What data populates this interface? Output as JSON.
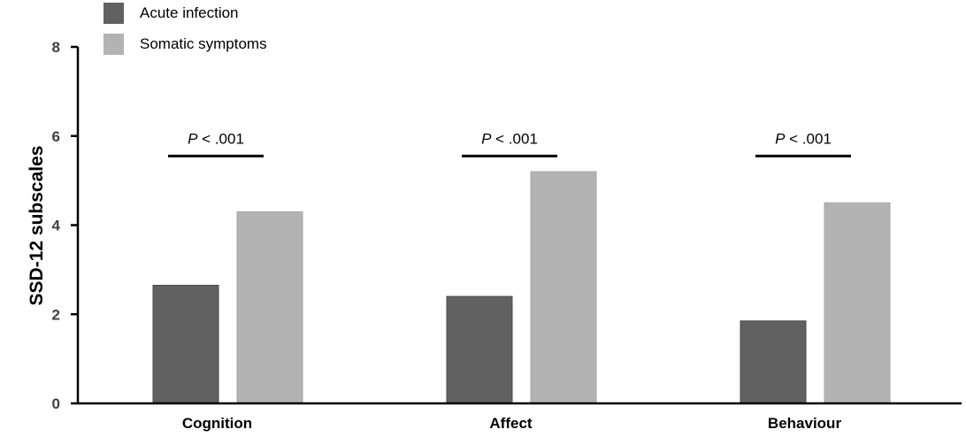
{
  "chart_data": {
    "type": "bar",
    "title": "",
    "xlabel": "",
    "ylabel": "SSD-12 subscales",
    "ylim": [
      0,
      8
    ],
    "yticks": [
      "0",
      "2",
      "4",
      "6",
      "8"
    ],
    "grid": false,
    "legend_position": "top-left",
    "categories": [
      "Cognition",
      "Affect",
      "Behaviour"
    ],
    "series": [
      {
        "name": "Acute infection",
        "color": "#616161",
        "values": [
          2.65,
          2.4,
          1.85
        ]
      },
      {
        "name": "Somatic symptoms",
        "color": "#b3b3b3",
        "values": [
          4.3,
          5.2,
          4.5
        ]
      }
    ],
    "annotations": [
      {
        "category": "Cognition",
        "p_letter": "P",
        "p_rest": " < .001",
        "y": 5.55
      },
      {
        "category": "Affect",
        "p_letter": "P",
        "p_rest": " < .001",
        "y": 5.55
      },
      {
        "category": "Behaviour",
        "p_letter": "P",
        "p_rest": " < .001",
        "y": 5.55
      }
    ]
  }
}
